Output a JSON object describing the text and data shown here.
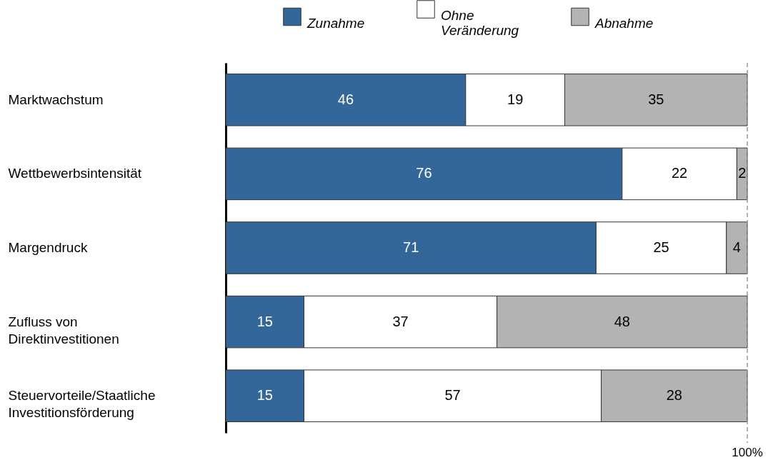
{
  "chart_data": {
    "type": "bar",
    "orientation": "horizontal",
    "stacked": true,
    "categories": [
      "Marktwachstum",
      "Wettbewerbsintensität",
      "Margendruck",
      "Zufluss von Direktinvestitionen",
      "Steuervorteile/Staatliche Investitionsförderung"
    ],
    "series": [
      {
        "name": "Zunahme",
        "color": "#336699",
        "values": [
          46,
          76,
          71,
          15,
          15
        ]
      },
      {
        "name": "Ohne Veränderung",
        "color": "#ffffff",
        "values": [
          19,
          22,
          25,
          37,
          57
        ]
      },
      {
        "name": "Abnahme",
        "color": "#b3b3b3",
        "values": [
          35,
          2,
          4,
          48,
          28
        ]
      }
    ],
    "xlim": [
      0,
      100
    ],
    "data_labels": true,
    "tick_labels": "y",
    "grid": false,
    "legend": "top",
    "ref_lines": [
      {
        "axis": "x",
        "value": 100,
        "label": "100%",
        "color": "#999999",
        "line_style": "dashed"
      }
    ]
  }
}
